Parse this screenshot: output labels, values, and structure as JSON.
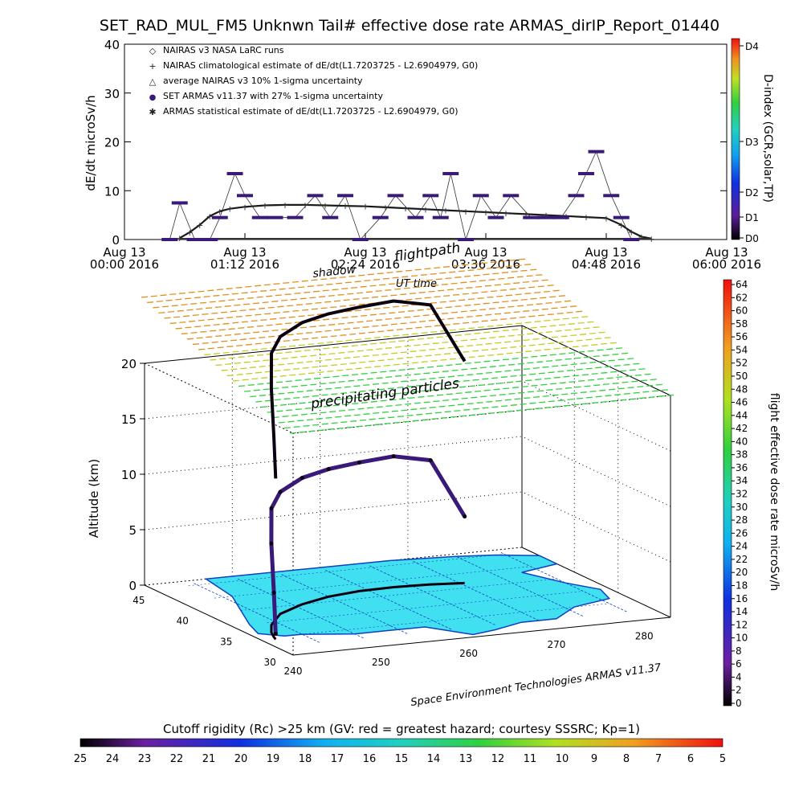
{
  "page_title": "SET_RAD_MUL_FM5 Unknwn Tail#  effective dose rate ARMAS_dirIP_Report_01440",
  "colors": {
    "flight_path": "#0a0010",
    "nairas_line": "#1a1a1a",
    "armas_markers": "#3a1a78",
    "land": "#40e0f0",
    "land_edge": "#1040c0",
    "precip_warm": "#e09020",
    "precip_cool": "#30d040"
  },
  "chart_data": [
    {
      "type": "scatter",
      "ylabel": "dE/dt microSv/h",
      "ylim": [
        0,
        40
      ],
      "y_ticks": [
        "0",
        "10",
        "20",
        "30",
        "40"
      ],
      "x_ticks": [
        {
          "line1": "Aug 13",
          "line2": "00:00 2016"
        },
        {
          "line1": "Aug 13",
          "line2": "01:12 2016"
        },
        {
          "line1": "Aug 13",
          "line2": "02:24 2016"
        },
        {
          "line1": "Aug 13",
          "line2": "03:36 2016"
        },
        {
          "line1": "Aug 13",
          "line2": "04:48 2016"
        },
        {
          "line1": "Aug 13",
          "line2": "06:00 2016"
        }
      ],
      "xlim_hours": [
        0,
        6
      ],
      "legend": [
        {
          "symbol": "◇",
          "label": "NAIRAS v3 NASA LaRC runs"
        },
        {
          "symbol": "+",
          "label": "NAIRAS climatological estimate of dE/dt(L1.7203725 - L2.6904979, G0)"
        },
        {
          "symbol": "△",
          "label": "average NAIRAS v3 10% 1-sigma uncertainty"
        },
        {
          "symbol": "●",
          "label": "SET ARMAS v11.37 with 27% 1-sigma uncertainty"
        },
        {
          "symbol": "✱",
          "label": "ARMAS statistical estimate of dE/dt(L1.7203725 - L2.6904979, G0)"
        }
      ],
      "series": [
        {
          "name": "NAIRAS v3 NASA LaRC runs",
          "x": [
            0.55,
            0.65,
            0.75,
            0.85,
            0.95,
            1.05,
            1.2,
            1.4,
            1.6,
            1.8,
            2.0,
            2.2,
            2.4,
            2.6,
            2.8,
            3.0,
            3.2,
            3.4,
            3.6,
            3.8,
            4.0,
            4.2,
            4.4,
            4.6,
            4.8,
            4.95,
            5.05,
            5.15,
            5.25
          ],
          "y": [
            0.3,
            1.5,
            3.0,
            4.8,
            5.8,
            6.3,
            6.7,
            7.0,
            7.1,
            7.1,
            7.0,
            6.9,
            6.8,
            6.6,
            6.4,
            6.2,
            6.0,
            5.8,
            5.6,
            5.4,
            5.2,
            5.0,
            4.8,
            4.6,
            4.4,
            3.0,
            1.6,
            0.6,
            0.2
          ]
        },
        {
          "name": "SET ARMAS v11.37 with 27% 1-sigma uncertainty",
          "x": [
            0.45,
            0.55,
            0.7,
            0.85,
            0.95,
            1.1,
            1.2,
            1.35,
            1.5,
            1.7,
            1.9,
            2.05,
            2.2,
            2.35,
            2.55,
            2.7,
            2.9,
            3.05,
            3.15,
            3.25,
            3.4,
            3.55,
            3.7,
            3.85,
            4.05,
            4.2,
            4.35,
            4.5,
            4.6,
            4.7,
            4.85,
            4.95,
            5.05
          ],
          "y": [
            0.0,
            7.5,
            0.0,
            0.0,
            4.5,
            13.5,
            9.0,
            4.5,
            4.5,
            4.5,
            9.0,
            4.5,
            9.0,
            0.0,
            4.5,
            9.0,
            4.5,
            9.0,
            4.5,
            13.5,
            0.0,
            9.0,
            4.5,
            9.0,
            4.5,
            4.5,
            4.5,
            9.0,
            13.5,
            18.0,
            9.0,
            4.5,
            0.0
          ]
        }
      ]
    },
    {
      "type": "scatter",
      "zlabel": "Altitude (km)",
      "zlim": [
        0,
        20
      ],
      "z_ticks": [
        "0",
        "5",
        "10",
        "15",
        "20"
      ],
      "lat_ticks": [
        "45",
        "40",
        "35",
        "30"
      ],
      "lon_ticks": [
        "240",
        "250",
        "260",
        "270",
        "280"
      ],
      "annotations": {
        "shadow": "shadow",
        "flightpath": "flightpath",
        "ut_time": "UT time",
        "precip": "precipitating particles",
        "credit": "Space Environment Technologies ARMAS v11.37"
      },
      "flight_track": {
        "lon": [
          241.5,
          241.8,
          242.5,
          244.0,
          247.0,
          251.0,
          255.0,
          259.0,
          263.0,
          267.0,
          270.5
        ],
        "lat": [
          32.5,
          33.0,
          34.0,
          35.5,
          37.5,
          39.0,
          40.0,
          40.5,
          40.6,
          40.4,
          40.0
        ],
        "alt_km": [
          0.5,
          4.0,
          8.0,
          10.5,
          11.0,
          11.4,
          11.5,
          11.6,
          11.8,
          11.2,
          6.0
        ]
      }
    }
  ],
  "dindex_bar": {
    "label": "D-index (GCR,solar,TP)",
    "ticks": [
      "D4",
      "D3",
      "D2",
      "D1",
      "D0"
    ]
  },
  "dose_bar": {
    "label": "flight effective dose rate microSv/h",
    "ticks": [
      "64",
      "62",
      "60",
      "58",
      "56",
      "54",
      "52",
      "50",
      "48",
      "46",
      "44",
      "42",
      "40",
      "38",
      "36",
      "34",
      "32",
      "30",
      "28",
      "26",
      "24",
      "22",
      "20",
      "18",
      "16",
      "14",
      "12",
      "10",
      "8",
      "6",
      "4",
      "2",
      "0"
    ]
  },
  "cutoff_bar": {
    "label": "Cutoff rigidity (Rc) >25 km (GV: red = greatest hazard; courtesy SSSRC; Kp=1)",
    "ticks": [
      "25",
      "24",
      "23",
      "22",
      "21",
      "20",
      "19",
      "18",
      "17",
      "16",
      "15",
      "14",
      "13",
      "12",
      "11",
      "10",
      "9",
      "8",
      "7",
      "6",
      "5"
    ]
  }
}
